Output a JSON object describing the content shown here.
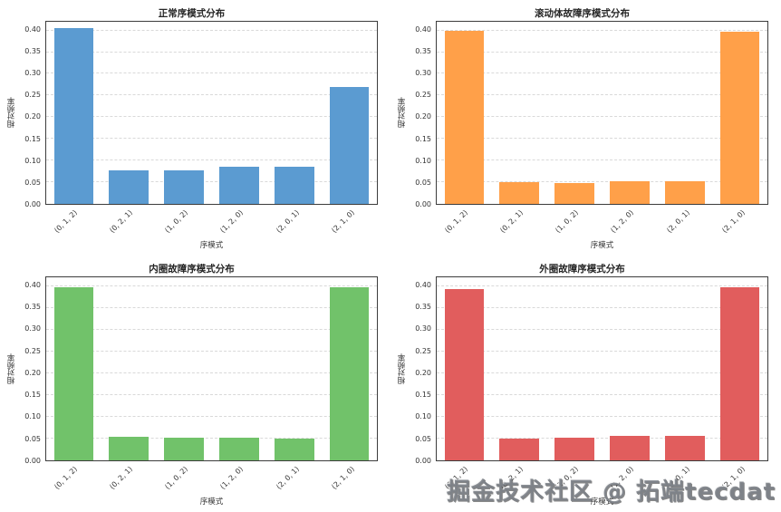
{
  "watermark": {
    "text": "掘金技术社区 @ 拓端tecdat"
  },
  "chart_data": [
    {
      "type": "bar",
      "title": "正常序模式分布",
      "categories": [
        "(0, 1, 2)",
        "(0, 2, 1)",
        "(1, 0, 2)",
        "(1, 2, 0)",
        "(2, 0, 1)",
        "(2, 1, 0)"
      ],
      "values": [
        0.405,
        0.077,
        0.077,
        0.085,
        0.085,
        0.27
      ],
      "xlabel": "序模式",
      "ylabel": "相对频率",
      "ylim": [
        0,
        0.42
      ],
      "ytick_labels": [
        "0.00",
        "0.05",
        "0.10",
        "0.15",
        "0.20",
        "0.25",
        "0.30",
        "0.35",
        "0.40"
      ],
      "color": "#5b9bd1",
      "grid": "horizontal-dashed",
      "legend": "none"
    },
    {
      "type": "bar",
      "title": "滚动体故障序模式分布",
      "categories": [
        "(0, 1, 2)",
        "(0, 2, 1)",
        "(1, 0, 2)",
        "(1, 2, 0)",
        "(2, 0, 1)",
        "(2, 1, 0)"
      ],
      "values": [
        0.4,
        0.051,
        0.049,
        0.053,
        0.052,
        0.398
      ],
      "xlabel": "序模式",
      "ylabel": "相对频率",
      "ylim": [
        0,
        0.42
      ],
      "ytick_labels": [
        "0.00",
        "0.05",
        "0.10",
        "0.15",
        "0.20",
        "0.25",
        "0.30",
        "0.35",
        "0.40"
      ],
      "color": "#ffa049",
      "grid": "horizontal-dashed",
      "legend": "none"
    },
    {
      "type": "bar",
      "title": "内圈故障序模式分布",
      "categories": [
        "(0, 1, 2)",
        "(0, 2, 1)",
        "(1, 0, 2)",
        "(1, 2, 0)",
        "(2, 0, 1)",
        "(2, 1, 0)"
      ],
      "values": [
        0.397,
        0.054,
        0.051,
        0.052,
        0.05,
        0.398
      ],
      "xlabel": "序模式",
      "ylabel": "相对频率",
      "ylim": [
        0,
        0.42
      ],
      "ytick_labels": [
        "0.00",
        "0.05",
        "0.10",
        "0.15",
        "0.20",
        "0.25",
        "0.30",
        "0.35",
        "0.40"
      ],
      "color": "#71c26a",
      "grid": "horizontal-dashed",
      "legend": "none"
    },
    {
      "type": "bar",
      "title": "外圈故障序模式分布",
      "categories": [
        "(0, 1, 2)",
        "(0, 2, 1)",
        "(1, 0, 2)",
        "(1, 2, 0)",
        "(2, 0, 1)",
        "(2, 1, 0)"
      ],
      "values": [
        0.392,
        0.05,
        0.051,
        0.056,
        0.056,
        0.397
      ],
      "xlabel": "序模式",
      "ylabel": "相对频率",
      "ylim": [
        0,
        0.42
      ],
      "ytick_labels": [
        "0.00",
        "0.05",
        "0.10",
        "0.15",
        "0.20",
        "0.25",
        "0.30",
        "0.35",
        "0.40"
      ],
      "color": "#e15d5d",
      "grid": "horizontal-dashed",
      "legend": "none"
    }
  ]
}
